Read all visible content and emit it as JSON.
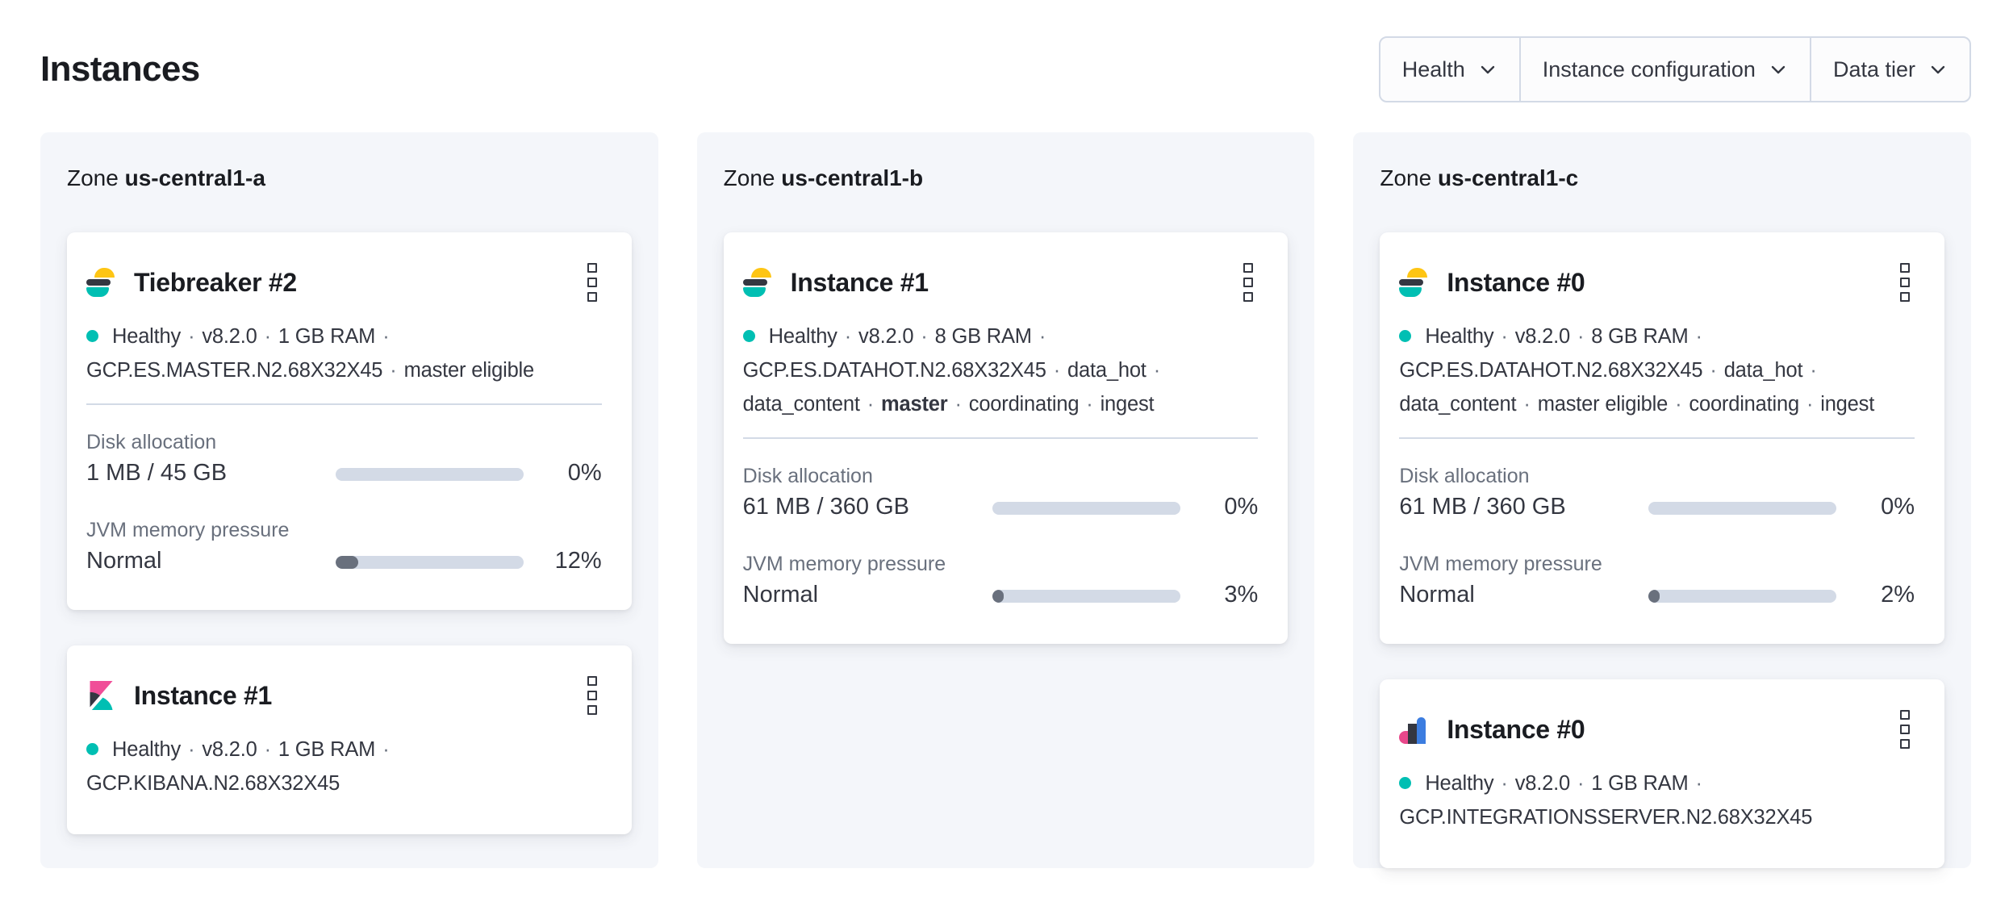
{
  "page": {
    "title": "Instances"
  },
  "filters": [
    {
      "label": "Health"
    },
    {
      "label": "Instance configuration"
    },
    {
      "label": "Data tier"
    }
  ],
  "colors": {
    "accent_teal": "#00bfb3",
    "logo_yellow": "#fec514",
    "logo_dark": "#343741",
    "logo_pink": "#f04e98",
    "logo_blue": "#3c7de0",
    "panel_bg": "#f4f6fa",
    "bar_track": "#d3dae6",
    "bar_fill": "#69707d",
    "text_subdued": "#69707d",
    "text_title": "#1a1c21"
  },
  "zones": [
    {
      "zone_word": "Zone",
      "name": "us-central1-a",
      "cards": [
        {
          "product": "elasticsearch",
          "title": "Tiebreaker #2",
          "status_lines": [
            {
              "health_dot": true,
              "trailing_separator": true,
              "segments": [
                {
                  "text": "Healthy"
                },
                {
                  "text": "v8.2.0"
                },
                {
                  "text": "1 GB RAM"
                }
              ]
            },
            {
              "health_dot": false,
              "trailing_separator": false,
              "segments": [
                {
                  "text": "GCP.ES.MASTER.N2.68X32X45"
                },
                {
                  "text": "master eligible"
                }
              ]
            }
          ],
          "metrics": [
            {
              "label": "Disk allocation",
              "value": "1 MB / 45 GB",
              "percent": 0,
              "percent_label": "0%"
            },
            {
              "label": "JVM memory pressure",
              "value": "Normal",
              "percent": 12,
              "percent_label": "12%"
            }
          ]
        },
        {
          "product": "kibana",
          "title": "Instance #1",
          "status_lines": [
            {
              "health_dot": true,
              "trailing_separator": true,
              "segments": [
                {
                  "text": "Healthy"
                },
                {
                  "text": "v8.2.0"
                },
                {
                  "text": "1 GB RAM"
                }
              ]
            },
            {
              "health_dot": false,
              "trailing_separator": false,
              "segments": [
                {
                  "text": "GCP.KIBANA.N2.68X32X45"
                }
              ]
            }
          ],
          "metrics": []
        }
      ]
    },
    {
      "zone_word": "Zone",
      "name": "us-central1-b",
      "cards": [
        {
          "product": "elasticsearch",
          "title": "Instance #1",
          "status_lines": [
            {
              "health_dot": true,
              "trailing_separator": true,
              "segments": [
                {
                  "text": "Healthy"
                },
                {
                  "text": "v8.2.0"
                },
                {
                  "text": "8 GB RAM"
                }
              ]
            },
            {
              "health_dot": false,
              "trailing_separator": true,
              "segments": [
                {
                  "text": "GCP.ES.DATAHOT.N2.68X32X45"
                },
                {
                  "text": "data_hot"
                }
              ]
            },
            {
              "health_dot": false,
              "trailing_separator": false,
              "segments": [
                {
                  "text": "data_content"
                },
                {
                  "text": "master",
                  "bold": true
                },
                {
                  "text": "coordinating"
                },
                {
                  "text": "ingest"
                }
              ]
            }
          ],
          "metrics": [
            {
              "label": "Disk allocation",
              "value": "61 MB / 360 GB",
              "percent": 0,
              "percent_label": "0%"
            },
            {
              "label": "JVM memory pressure",
              "value": "Normal",
              "percent": 3,
              "percent_label": "3%"
            }
          ]
        }
      ]
    },
    {
      "zone_word": "Zone",
      "name": "us-central1-c",
      "cards": [
        {
          "product": "elasticsearch",
          "title": "Instance #0",
          "status_lines": [
            {
              "health_dot": true,
              "trailing_separator": true,
              "segments": [
                {
                  "text": "Healthy"
                },
                {
                  "text": "v8.2.0"
                },
                {
                  "text": "8 GB RAM"
                }
              ]
            },
            {
              "health_dot": false,
              "trailing_separator": true,
              "segments": [
                {
                  "text": "GCP.ES.DATAHOT.N2.68X32X45"
                },
                {
                  "text": "data_hot"
                }
              ]
            },
            {
              "health_dot": false,
              "trailing_separator": false,
              "segments": [
                {
                  "text": "data_content"
                },
                {
                  "text": "master eligible"
                },
                {
                  "text": "coordinating"
                },
                {
                  "text": "ingest"
                }
              ]
            }
          ],
          "metrics": [
            {
              "label": "Disk allocation",
              "value": "61 MB / 360 GB",
              "percent": 0,
              "percent_label": "0%"
            },
            {
              "label": "JVM memory pressure",
              "value": "Normal",
              "percent": 2,
              "percent_label": "2%"
            }
          ]
        },
        {
          "product": "integrations-server",
          "title": "Instance #0",
          "status_lines": [
            {
              "health_dot": true,
              "trailing_separator": true,
              "segments": [
                {
                  "text": "Healthy"
                },
                {
                  "text": "v8.2.0"
                },
                {
                  "text": "1 GB RAM"
                }
              ]
            },
            {
              "health_dot": false,
              "trailing_separator": false,
              "segments": [
                {
                  "text": "GCP.INTEGRATIONSSERVER.N2.68X32X45"
                }
              ]
            }
          ],
          "metrics": []
        }
      ]
    }
  ]
}
